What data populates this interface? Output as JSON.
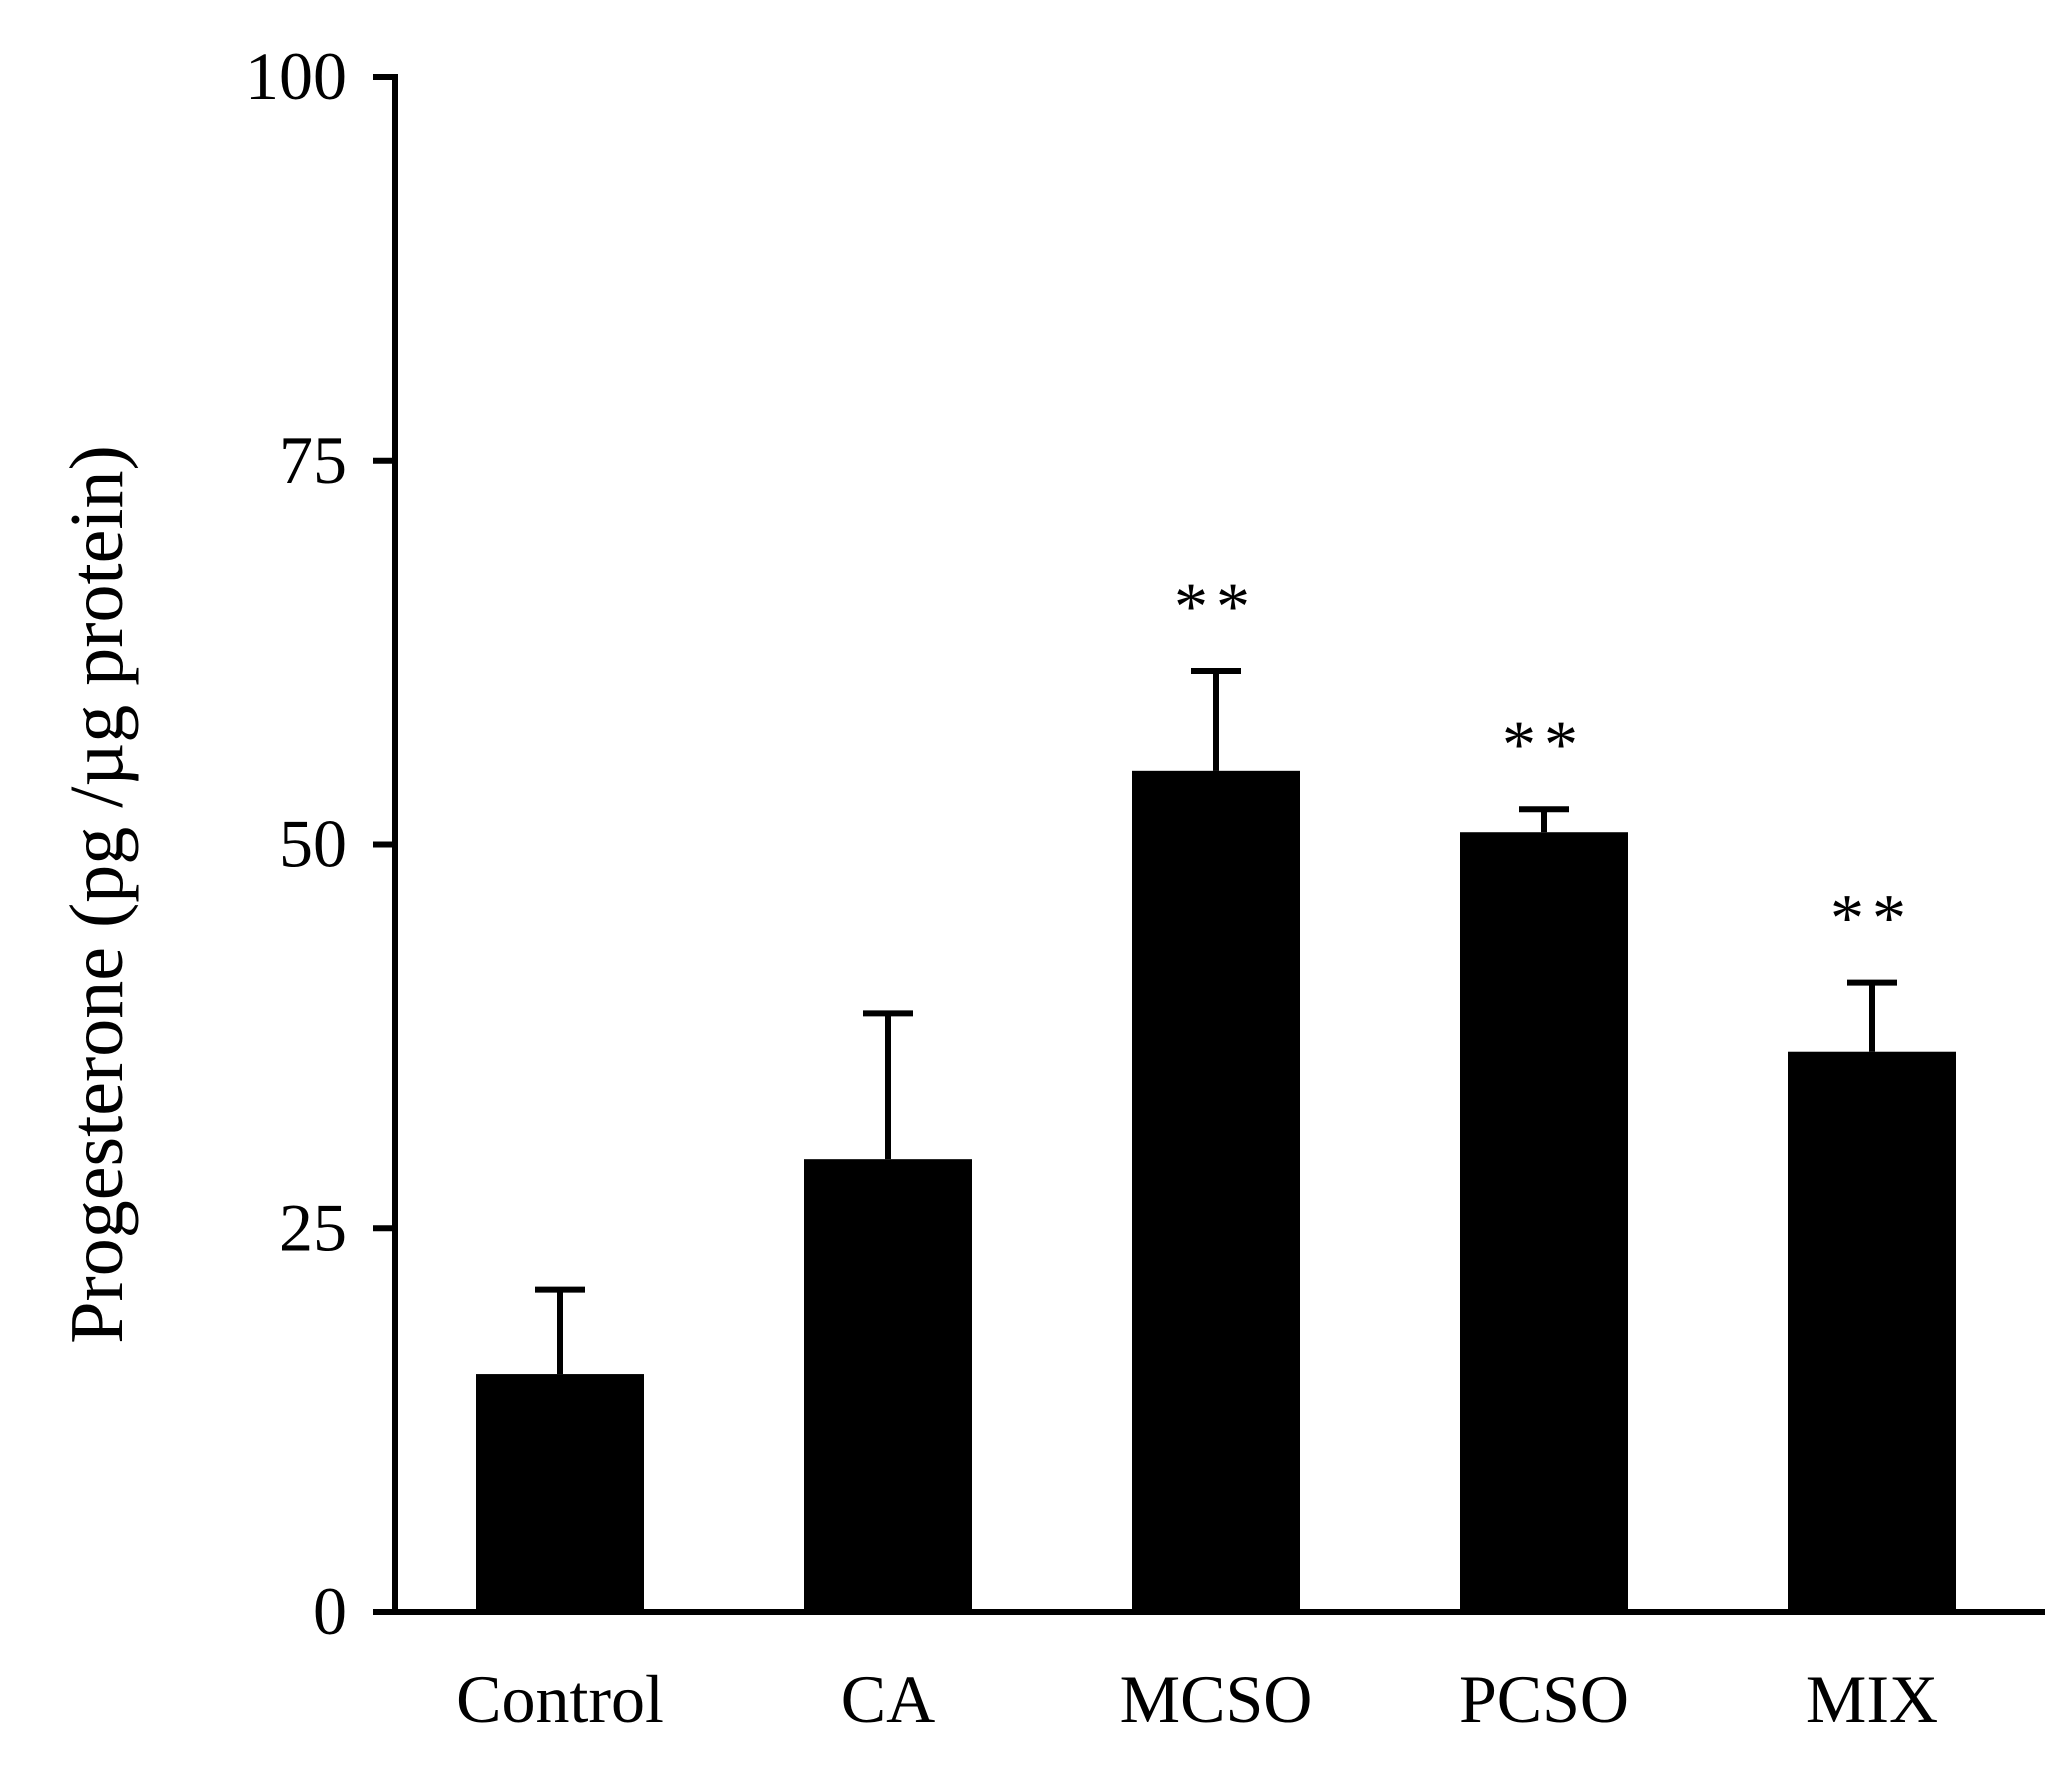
{
  "chart_data": {
    "type": "bar",
    "title": "",
    "xlabel": "",
    "ylabel": "Progesterone (pg /µg protein)",
    "ylim": [
      0,
      100
    ],
    "yticks": [
      "0",
      "25",
      "50",
      "75",
      "100"
    ],
    "categories": [
      "Control",
      "CA",
      "MCSO",
      "PCSO",
      "MIX"
    ],
    "values": [
      15.5,
      29.5,
      54.8,
      50.8,
      36.5
    ],
    "errors": [
      5.5,
      9.5,
      6.5,
      1.5,
      4.5
    ],
    "significance": [
      "",
      "",
      "**",
      "**",
      "**"
    ],
    "grid": false,
    "legend": "none",
    "colors": {
      "bar": "#000000",
      "axis": "#000000",
      "background": "#ffffff"
    }
  }
}
